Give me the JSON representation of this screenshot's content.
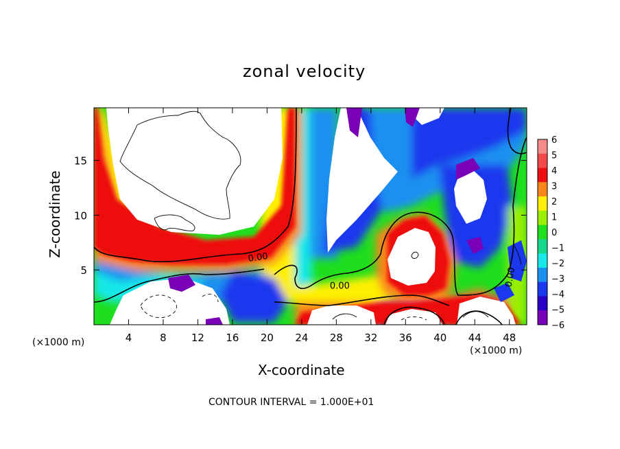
{
  "chart_data": {
    "type": "heatmap",
    "title": "zonal velocity",
    "xlabel": "X-coordinate",
    "ylabel": "Z-coordinate",
    "x_unit": "(×1000 m)",
    "xlim": [
      0,
      50
    ],
    "ylim": [
      0,
      19.8
    ],
    "x_ticks": [
      4,
      8,
      12,
      16,
      20,
      24,
      28,
      32,
      36,
      40,
      44,
      48
    ],
    "y_ticks": [
      5,
      10,
      15
    ],
    "colorbar": {
      "levels": [
        6,
        5,
        4,
        3,
        2,
        1,
        0,
        -1,
        -2,
        -3,
        -4,
        -5,
        -6
      ],
      "labels": [
        "6",
        "5",
        "4",
        "3",
        "2",
        "1",
        "0",
        "−1",
        "−2",
        "−3",
        "−4",
        "−5",
        "−6"
      ],
      "colors": [
        "#f48c8c",
        "#f24a4a",
        "#ee1010",
        "#f8861c",
        "#fef000",
        "#9aee00",
        "#1ede1e",
        "#14d88c",
        "#18e8e8",
        "#1c90f0",
        "#1a38ee",
        "#2a00c8",
        "#7a00b8"
      ]
    },
    "contour_labels": [
      "0.00",
      "0.00",
      "0.00"
    ],
    "contour_interval": "CONTOUR INTERVAL = 1.000E+01",
    "grid": false,
    "legend": "colorbar right"
  }
}
